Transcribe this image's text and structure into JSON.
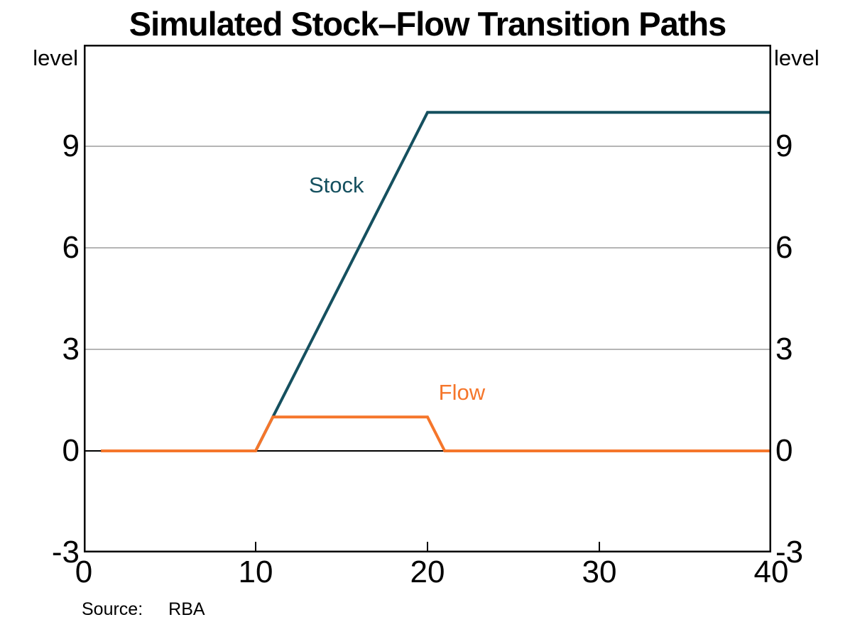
{
  "labels": {
    "level_left": "level",
    "level_right": "level"
  },
  "source": {
    "label": "Source:",
    "value": "RBA"
  },
  "colors": {
    "stock": "#15505f",
    "flow": "#f5762b",
    "gridline": "#b5b5b5",
    "axis": "#000000"
  },
  "chart_data": {
    "type": "line",
    "title": "Simulated Stock–Flow Transition Paths",
    "xlabel": "",
    "ylabel_left": "level",
    "ylabel_right": "level",
    "xlim": [
      0,
      40
    ],
    "ylim": [
      -3,
      12
    ],
    "x_ticks": [
      0,
      10,
      20,
      30,
      40
    ],
    "y_ticks": [
      -3,
      0,
      3,
      6,
      9
    ],
    "gridline_values": [
      3,
      6,
      9
    ],
    "zero_line": true,
    "grid": true,
    "legend_position": "inline-annotations",
    "x": [
      1,
      2,
      3,
      4,
      5,
      6,
      7,
      8,
      9,
      10,
      11,
      12,
      13,
      14,
      15,
      16,
      17,
      18,
      19,
      20,
      21,
      22,
      23,
      24,
      25,
      26,
      27,
      28,
      29,
      30,
      31,
      32,
      33,
      34,
      35,
      36,
      37,
      38,
      39,
      40
    ],
    "series": [
      {
        "name": "Stock",
        "color": "#15505f",
        "values": [
          0,
          0,
          0,
          0,
          0,
          0,
          0,
          0,
          0,
          0,
          1,
          2,
          3,
          4,
          5,
          6,
          7,
          8,
          9,
          10,
          10,
          10,
          10,
          10,
          10,
          10,
          10,
          10,
          10,
          10,
          10,
          10,
          10,
          10,
          10,
          10,
          10,
          10,
          10,
          10
        ]
      },
      {
        "name": "Flow",
        "color": "#f5762b",
        "values": [
          0,
          0,
          0,
          0,
          0,
          0,
          0,
          0,
          0,
          0,
          1,
          1,
          1,
          1,
          1,
          1,
          1,
          1,
          1,
          1,
          0,
          0,
          0,
          0,
          0,
          0,
          0,
          0,
          0,
          0,
          0,
          0,
          0,
          0,
          0,
          0,
          0,
          0,
          0,
          0
        ]
      }
    ],
    "annotations": [
      {
        "text": "Stock",
        "x": 14.7,
        "y": 7.85,
        "color": "#15505f"
      },
      {
        "text": "Flow",
        "x": 22.0,
        "y": 1.72,
        "color": "#f5762b"
      }
    ]
  }
}
